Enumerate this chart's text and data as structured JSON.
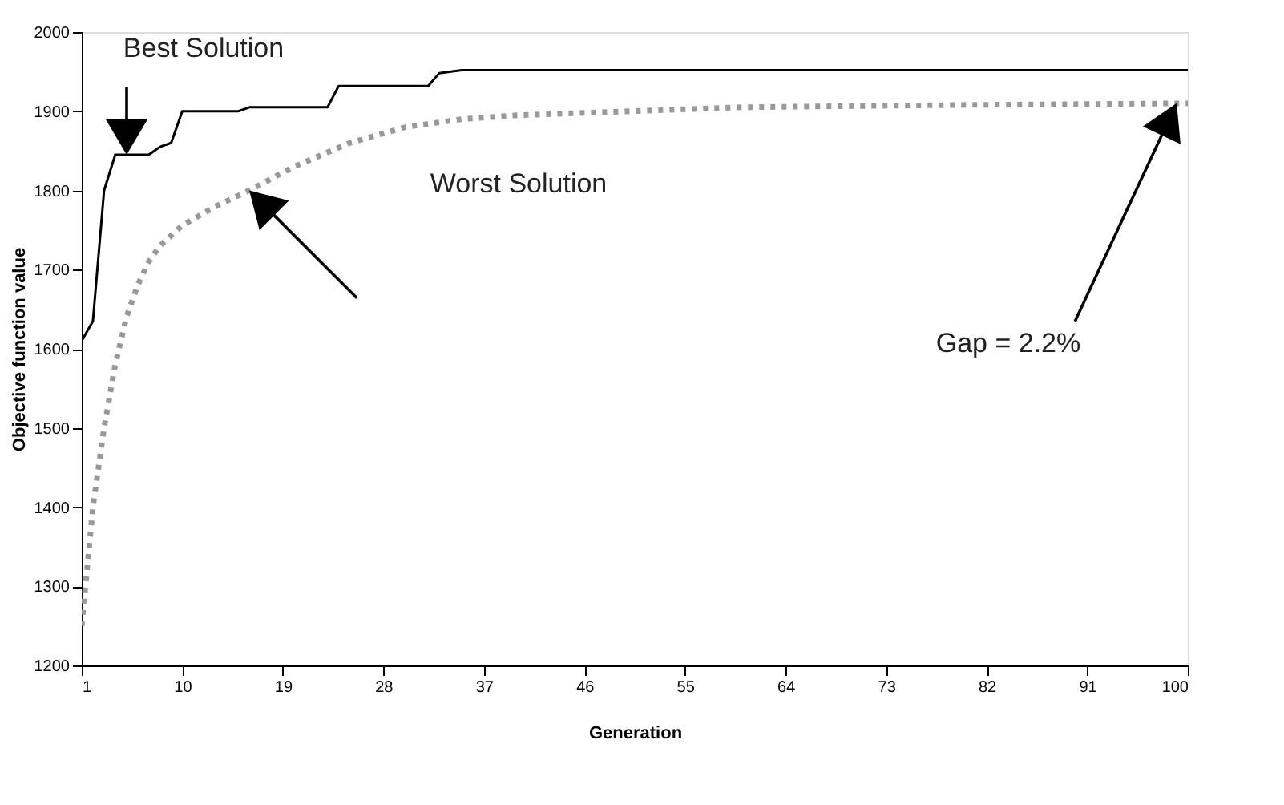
{
  "chart_data": {
    "type": "line",
    "xlabel": "Generation",
    "ylabel": "Objective function value",
    "xlim": [
      1,
      100
    ],
    "xticks": [
      1,
      10,
      19,
      28,
      37,
      46,
      55,
      64,
      73,
      82,
      91,
      100
    ],
    "ylim": [
      1200,
      2000
    ],
    "yticks": [
      1200,
      1300,
      1400,
      1500,
      1600,
      1700,
      1800,
      1900,
      2000
    ],
    "grid": false,
    "series": [
      {
        "color": "#000000",
        "line_style": "solid",
        "x": [
          1,
          2,
          3,
          4,
          5,
          6,
          7,
          8,
          9,
          10,
          15,
          16,
          23,
          24,
          32,
          33,
          35,
          100
        ],
        "values": [
          1610,
          1635,
          1800,
          1845,
          1845,
          1845,
          1845,
          1855,
          1860,
          1900,
          1900,
          1905,
          1905,
          1932,
          1932,
          1948,
          1952,
          1952
        ]
      },
      {
        "color": "#999999",
        "line_style": "dotted",
        "x": [
          1,
          2,
          3,
          4,
          5,
          6,
          7,
          8,
          10,
          13,
          16,
          20,
          25,
          30,
          35,
          40,
          50,
          60,
          80,
          100
        ],
        "values": [
          1250,
          1400,
          1500,
          1580,
          1640,
          1680,
          1710,
          1730,
          1756,
          1780,
          1800,
          1830,
          1860,
          1880,
          1890,
          1895,
          1900,
          1905,
          1908,
          1910
        ]
      }
    ],
    "annotations": [
      "Best Solution",
      "Worst Solution",
      "Gap = 2.2%"
    ]
  }
}
